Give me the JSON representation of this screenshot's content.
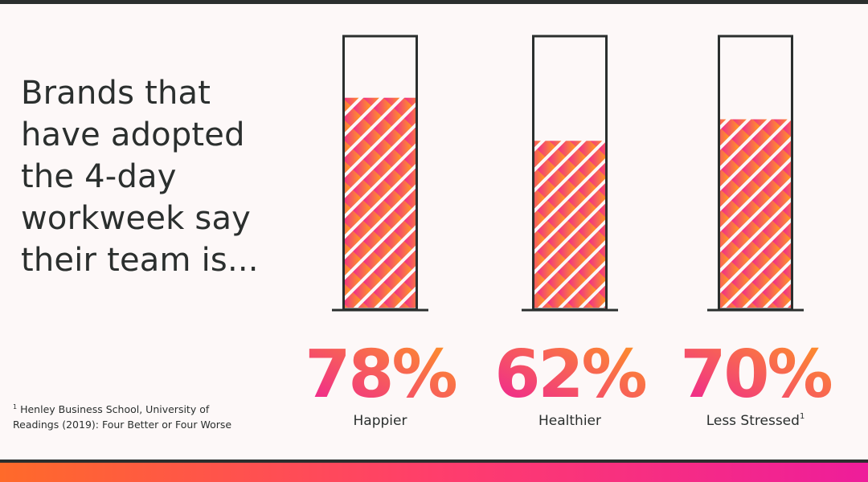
{
  "headline": "Brands that have adopted the 4-day workweek say their team is...",
  "footnote": {
    "marker": "1",
    "text": "Henley Business School, University of Readings (2019): Four Better or Four Worse"
  },
  "chart_data": {
    "type": "bar",
    "categories": [
      "Happier",
      "Healthier",
      "Less Stressed"
    ],
    "category_superscripts": [
      "",
      "",
      "1"
    ],
    "values": [
      78,
      62,
      70
    ],
    "value_labels": [
      "78%",
      "62%",
      "70%"
    ],
    "ylim": [
      0,
      100
    ],
    "grid": false,
    "fill_style": "diagonal stripes with magenta-to-orange gradient"
  },
  "colors": {
    "text": "#2b2f2e",
    "gradient_start": "#ee1d9a",
    "gradient_end": "#ff9a1f",
    "background": "#fdf8f8"
  }
}
